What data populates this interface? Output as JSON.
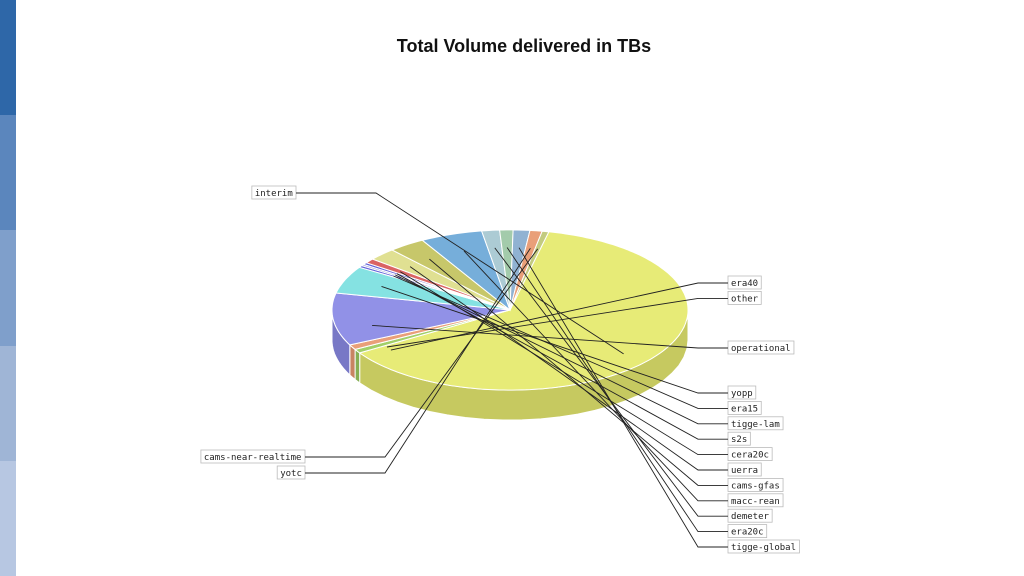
{
  "colors": {
    "side_segments": [
      "#2e67a8",
      "#5b86bd",
      "#7f9fcb",
      "#9fb5d6",
      "#b7c7e2"
    ]
  },
  "chart_data": {
    "type": "pie",
    "title": "Total Volume delivered in TBs",
    "labels": [
      "interim",
      "era40",
      "other",
      "operational",
      "yopp",
      "era15",
      "tigge-lam",
      "s2s",
      "cera20c",
      "uerra",
      "cams-gfas",
      "macc-rean",
      "demeter",
      "era20c",
      "tigge-global",
      "yotc",
      "cams-near-realtime"
    ],
    "values": [
      62.0,
      0.8,
      1.0,
      10.5,
      5.5,
      0.4,
      0.3,
      0.4,
      0.9,
      2.5,
      3.3,
      5.6,
      1.6,
      1.2,
      1.5,
      1.1,
      0.6
    ],
    "colors": [
      "#e6ea70",
      "#9ccc60",
      "#e89a72",
      "#8b8be6",
      "#7ee0e0",
      "#5c5cd8",
      "#9a9ad6",
      "#5a5ad8",
      "#d85c5c",
      "#dede8c",
      "#c4c462",
      "#6faad8",
      "#a8c8d2",
      "#9ec8a6",
      "#8aaed0",
      "#e89a72",
      "#c0c878"
    ],
    "legend": "callout labels"
  }
}
